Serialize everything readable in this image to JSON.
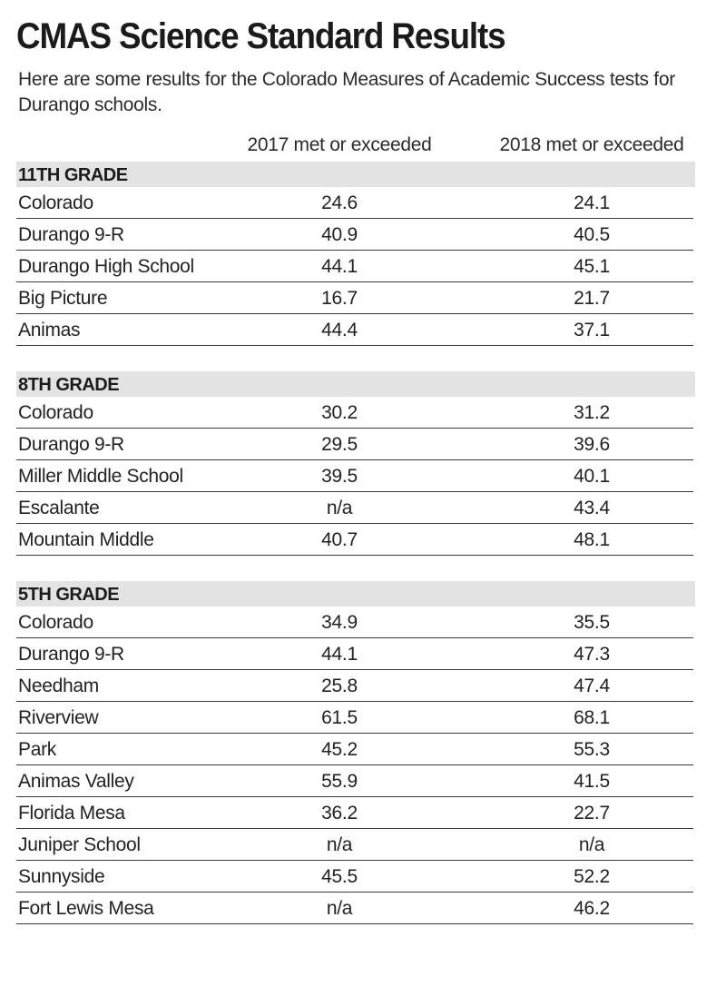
{
  "chart_data": {
    "type": "table",
    "title": "CMAS Science Standard Results",
    "subtitle": "Here are some results for the Colorado Measures of Academic Success tests for Durango schools.",
    "columns": [
      "2017 met or exceeded",
      "2018 met or exceeded"
    ],
    "sections": [
      {
        "label": "11TH GRADE",
        "rows": [
          {
            "name": "Colorado",
            "v2017": "24.6",
            "v2018": "24.1"
          },
          {
            "name": "Durango 9-R",
            "v2017": "40.9",
            "v2018": "40.5"
          },
          {
            "name": "Durango High School",
            "v2017": "44.1",
            "v2018": "45.1"
          },
          {
            "name": "Big Picture",
            "v2017": "16.7",
            "v2018": "21.7"
          },
          {
            "name": "Animas",
            "v2017": "44.4",
            "v2018": "37.1"
          }
        ]
      },
      {
        "label": "8TH GRADE",
        "rows": [
          {
            "name": "Colorado",
            "v2017": "30.2",
            "v2018": "31.2"
          },
          {
            "name": "Durango 9-R",
            "v2017": "29.5",
            "v2018": "39.6"
          },
          {
            "name": "Miller Middle School",
            "v2017": "39.5",
            "v2018": "40.1"
          },
          {
            "name": "Escalante",
            "v2017": "n/a",
            "v2018": "43.4"
          },
          {
            "name": "Mountain Middle",
            "v2017": "40.7",
            "v2018": "48.1"
          }
        ]
      },
      {
        "label": "5TH GRADE",
        "rows": [
          {
            "name": "Colorado",
            "v2017": "34.9",
            "v2018": "35.5"
          },
          {
            "name": "Durango 9-R",
            "v2017": "44.1",
            "v2018": "47.3"
          },
          {
            "name": "Needham",
            "v2017": "25.8",
            "v2018": "47.4"
          },
          {
            "name": "Riverview",
            "v2017": "61.5",
            "v2018": "68.1"
          },
          {
            "name": "Park",
            "v2017": "45.2",
            "v2018": "55.3"
          },
          {
            "name": "Animas Valley",
            "v2017": "55.9",
            "v2018": "41.5"
          },
          {
            "name": "Florida Mesa",
            "v2017": "36.2",
            "v2018": "22.7"
          },
          {
            "name": "Juniper School",
            "v2017": "n/a",
            "v2018": "n/a"
          },
          {
            "name": "Sunnyside",
            "v2017": "45.5",
            "v2018": "52.2"
          },
          {
            "name": "Fort Lewis Mesa",
            "v2017": "n/a",
            "v2018": "46.2"
          }
        ]
      }
    ]
  }
}
